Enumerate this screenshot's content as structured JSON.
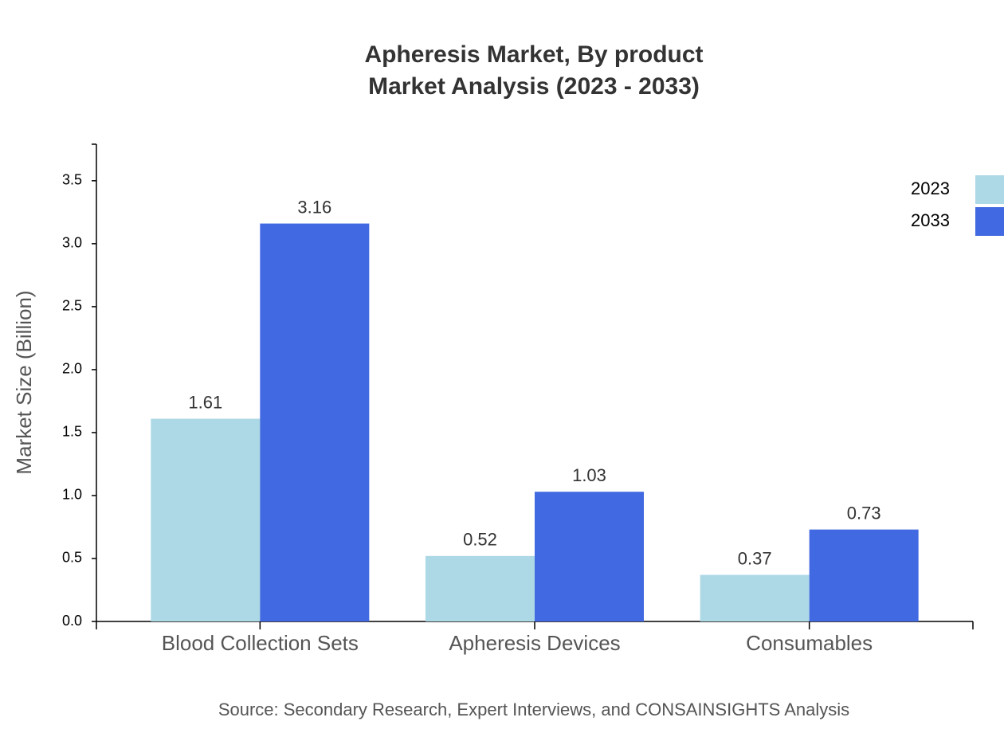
{
  "chart_data": {
    "type": "bar",
    "title": "Apheresis Market, By product",
    "subtitle": "Market Analysis (2023 - 2033)",
    "y_label": "Market Size (Billion)",
    "source": "Source: Secondary Research, Expert Interviews, and CONSAINSIGHTS Analysis",
    "categories": [
      "Blood Collection Sets",
      "Apheresis Devices",
      "Consumables"
    ],
    "series": [
      {
        "name": "2023",
        "color": "#add8e6",
        "values": [
          1.61,
          0.52,
          0.37
        ]
      },
      {
        "name": "2033",
        "color": "#4169e1",
        "values": [
          3.16,
          1.03,
          0.73
        ]
      }
    ],
    "ylim": [
      0,
      3.79
    ],
    "yticks": [
      {
        "value": 0,
        "label": "0.0"
      },
      0.5,
      {
        "value": 1,
        "label": "1.0"
      },
      1.5,
      {
        "value": 2,
        "label": "2.0"
      },
      2.5,
      {
        "value": 3,
        "label": "3.0"
      },
      3.5
    ],
    "legend": "top-right"
  }
}
